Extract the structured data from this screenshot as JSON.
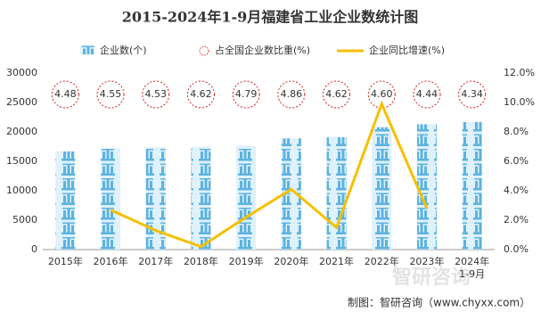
{
  "chart_data": {
    "type": "bar-line",
    "title": "2015-2024年1-9月福建省工业企业数统计图",
    "categories": [
      "2015年",
      "2016年",
      "2017年",
      "2018年",
      "2019年",
      "2020年",
      "2021年",
      "2022年",
      "2023年",
      "2024年\n1-9月"
    ],
    "series": [
      {
        "name": "企业数(个)",
        "type": "bar",
        "color": "#5db3e0",
        "values": [
          16700,
          17200,
          17400,
          17500,
          17600,
          18900,
          19100,
          20800,
          21300,
          21700
        ]
      },
      {
        "name": "占全国企业数比重(%)",
        "type": "label-circle",
        "color": "#d22222",
        "values": [
          4.48,
          4.55,
          4.53,
          4.62,
          4.79,
          4.86,
          4.62,
          4.6,
          4.44,
          4.34
        ],
        "value_labels": [
          "4.48",
          "4.55",
          "4.53",
          "4.62",
          "4.79",
          "4.86",
          "4.62",
          "4.60",
          "4.44",
          "4.34"
        ]
      },
      {
        "name": "企业同比增速(%)",
        "type": "line",
        "axis": "y2",
        "color": "#f5c000",
        "values": [
          null,
          2.7,
          1.3,
          0.2,
          2.2,
          4.1,
          1.5,
          9.9,
          2.8,
          null
        ]
      }
    ],
    "ylim": [
      0,
      30000
    ],
    "yticks": [
      0,
      5000,
      10000,
      15000,
      20000,
      25000,
      30000
    ],
    "y2lim": [
      0,
      12
    ],
    "y2ticks": [
      {
        "value": 0,
        "label": "0.0%"
      },
      {
        "value": 2,
        "label": "2.0%"
      },
      {
        "value": 4,
        "label": "4.0%"
      },
      {
        "value": 6,
        "label": "6.0%"
      },
      {
        "value": 8,
        "label": "8.0%"
      },
      {
        "value": 10,
        "label": "10.0%"
      },
      {
        "value": 12,
        "label": "12.0%"
      }
    ],
    "source": "制图：智研咨询（www.chyxx.com）",
    "watermark": "智研咨询"
  }
}
